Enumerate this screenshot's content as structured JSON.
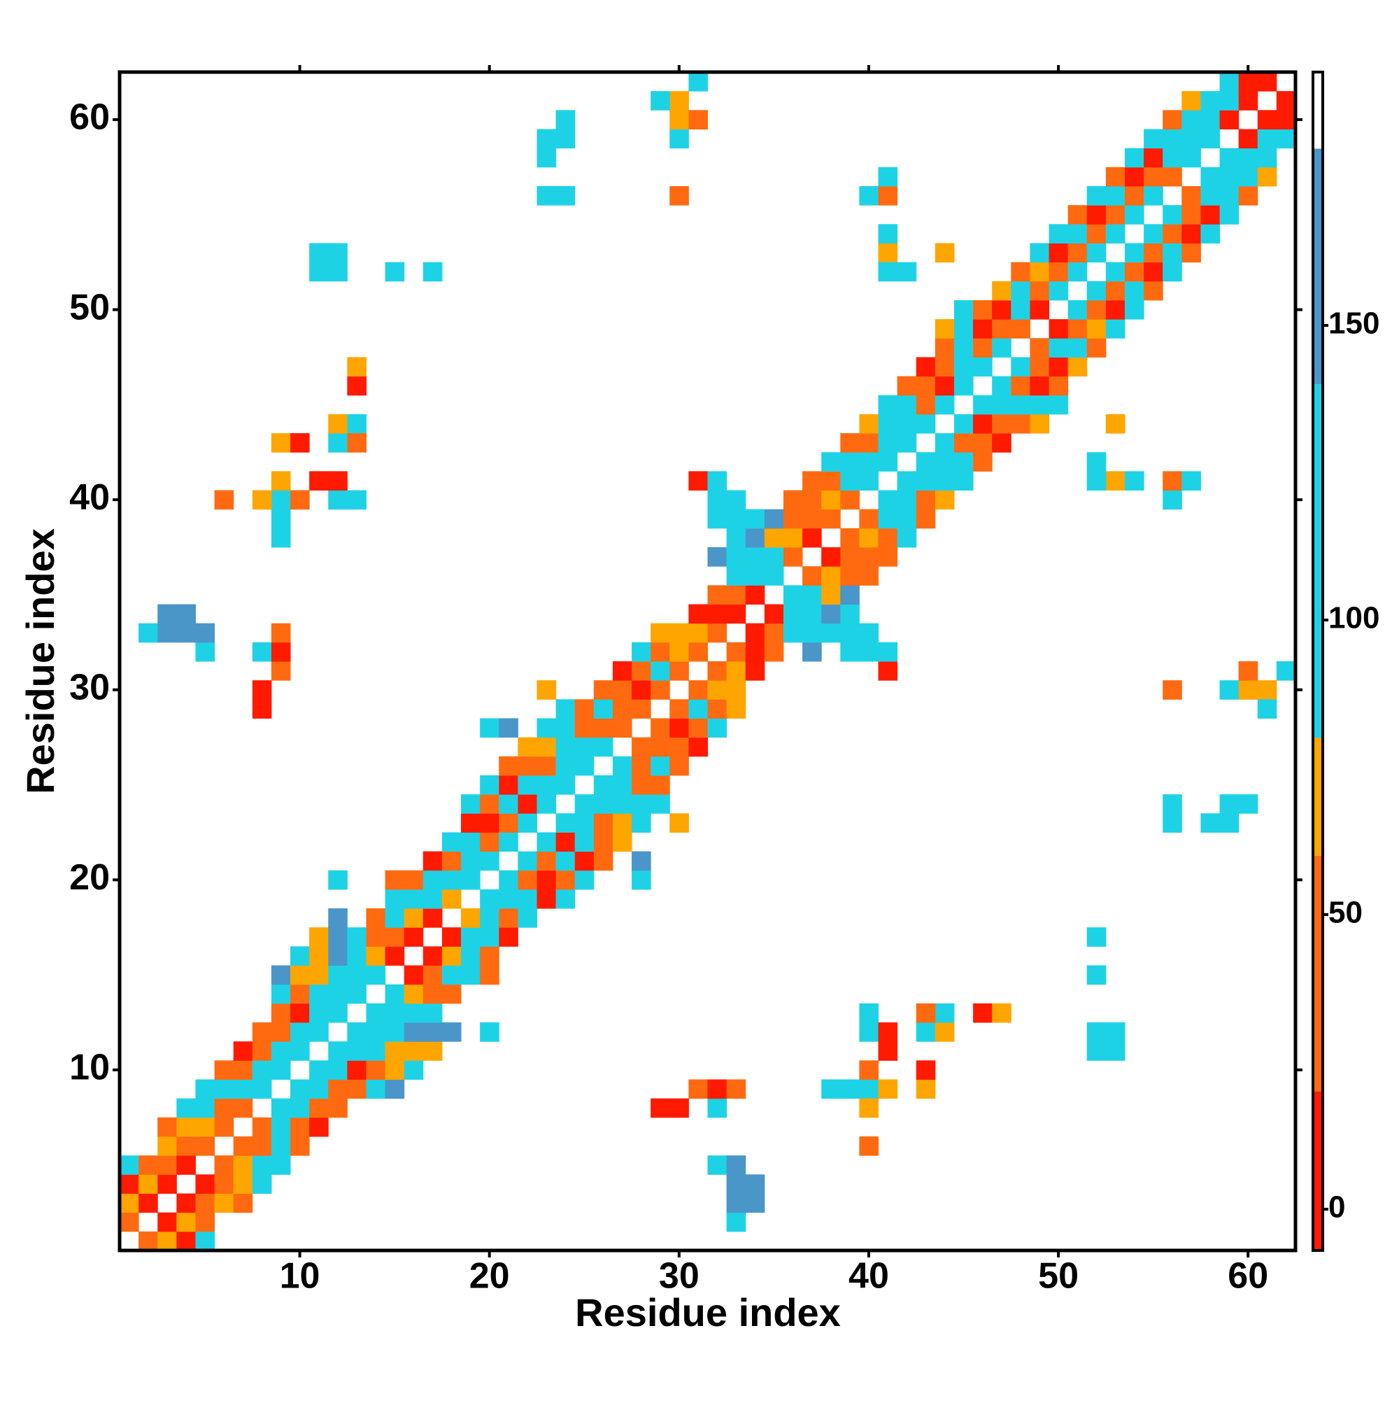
{
  "chart_data": {
    "type": "heatmap",
    "x_label": "Residue index",
    "y_label": "Residue index",
    "xlim": [
      0.5,
      62.5
    ],
    "ylim": [
      0.5,
      62.5
    ],
    "xticks": [
      10,
      20,
      30,
      40,
      50,
      60
    ],
    "yticks": [
      10,
      20,
      30,
      40,
      50,
      60
    ],
    "symmetric": true,
    "colorbar": {
      "range": [
        -7,
        193
      ],
      "ticks": [
        0,
        50,
        100,
        150
      ],
      "bands": [
        {
          "from": -7,
          "to": 20,
          "color": "#ff1a00"
        },
        {
          "from": 20,
          "to": 60,
          "color": "#ff6a10"
        },
        {
          "from": 60,
          "to": 80,
          "color": "#ffa500"
        },
        {
          "from": 80,
          "to": 140,
          "color": "#1ed2e6"
        },
        {
          "from": 140,
          "to": 180,
          "color": "#4a96c8"
        },
        {
          "from": 180,
          "to": 193,
          "color": "#ffffff"
        }
      ]
    },
    "cells": [
      [
        1,
        2,
        35
      ],
      [
        1,
        3,
        70
      ],
      [
        1,
        4,
        8
      ],
      [
        1,
        5,
        100
      ],
      [
        2,
        3,
        8
      ],
      [
        2,
        4,
        70
      ],
      [
        2,
        5,
        35
      ],
      [
        3,
        4,
        8
      ],
      [
        3,
        5,
        35
      ],
      [
        3,
        6,
        70
      ],
      [
        3,
        7,
        35
      ],
      [
        4,
        5,
        8
      ],
      [
        4,
        6,
        35
      ],
      [
        4,
        7,
        70
      ],
      [
        4,
        8,
        100
      ],
      [
        5,
        6,
        35
      ],
      [
        5,
        7,
        70
      ],
      [
        5,
        8,
        100
      ],
      [
        5,
        9,
        100
      ],
      [
        6,
        7,
        35
      ],
      [
        6,
        8,
        35
      ],
      [
        6,
        9,
        100
      ],
      [
        6,
        10,
        35
      ],
      [
        7,
        8,
        35
      ],
      [
        7,
        9,
        100
      ],
      [
        7,
        10,
        35
      ],
      [
        7,
        11,
        8
      ],
      [
        8,
        9,
        100
      ],
      [
        8,
        10,
        100
      ],
      [
        8,
        11,
        35
      ],
      [
        8,
        12,
        35
      ],
      [
        9,
        10,
        100
      ],
      [
        9,
        11,
        100
      ],
      [
        9,
        12,
        35
      ],
      [
        9,
        13,
        35
      ],
      [
        9,
        14,
        100
      ],
      [
        9,
        15,
        155
      ],
      [
        10,
        11,
        100
      ],
      [
        10,
        12,
        100
      ],
      [
        10,
        13,
        8
      ],
      [
        10,
        14,
        35
      ],
      [
        10,
        15,
        70
      ],
      [
        10,
        16,
        100
      ],
      [
        11,
        12,
        100
      ],
      [
        11,
        13,
        100
      ],
      [
        11,
        14,
        100
      ],
      [
        11,
        15,
        70
      ],
      [
        11,
        16,
        70
      ],
      [
        11,
        17,
        70
      ],
      [
        12,
        13,
        100
      ],
      [
        12,
        14,
        100
      ],
      [
        12,
        15,
        135
      ],
      [
        12,
        16,
        155
      ],
      [
        12,
        17,
        155
      ],
      [
        12,
        18,
        155
      ],
      [
        12,
        20,
        100
      ],
      [
        13,
        14,
        100
      ],
      [
        13,
        15,
        100
      ],
      [
        13,
        16,
        100
      ],
      [
        13,
        17,
        100
      ],
      [
        14,
        15,
        100
      ],
      [
        14,
        16,
        70
      ],
      [
        14,
        17,
        35
      ],
      [
        14,
        18,
        35
      ],
      [
        15,
        16,
        8
      ],
      [
        15,
        17,
        35
      ],
      [
        15,
        18,
        100
      ],
      [
        15,
        19,
        100
      ],
      [
        15,
        20,
        35
      ],
      [
        16,
        17,
        8
      ],
      [
        16,
        18,
        70
      ],
      [
        16,
        19,
        100
      ],
      [
        16,
        20,
        35
      ],
      [
        17,
        18,
        8
      ],
      [
        17,
        19,
        100
      ],
      [
        17,
        20,
        100
      ],
      [
        17,
        21,
        8
      ],
      [
        18,
        19,
        70
      ],
      [
        18,
        20,
        100
      ],
      [
        18,
        21,
        35
      ],
      [
        18,
        22,
        100
      ],
      [
        19,
        20,
        100
      ],
      [
        19,
        21,
        100
      ],
      [
        19,
        22,
        100
      ],
      [
        19,
        23,
        8
      ],
      [
        19,
        24,
        100
      ],
      [
        20,
        21,
        100
      ],
      [
        20,
        22,
        35
      ],
      [
        20,
        23,
        8
      ],
      [
        20,
        24,
        35
      ],
      [
        20,
        25,
        100
      ],
      [
        20,
        28,
        100
      ],
      [
        21,
        22,
        100
      ],
      [
        21,
        23,
        35
      ],
      [
        21,
        24,
        100
      ],
      [
        21,
        25,
        8
      ],
      [
        21,
        26,
        35
      ],
      [
        21,
        28,
        155
      ],
      [
        22,
        23,
        100
      ],
      [
        22,
        24,
        8
      ],
      [
        22,
        25,
        100
      ],
      [
        22,
        26,
        35
      ],
      [
        22,
        27,
        70
      ],
      [
        23,
        24,
        100
      ],
      [
        23,
        25,
        100
      ],
      [
        23,
        26,
        35
      ],
      [
        23,
        27,
        70
      ],
      [
        23,
        28,
        100
      ],
      [
        23,
        30,
        70
      ],
      [
        24,
        25,
        100
      ],
      [
        24,
        26,
        100
      ],
      [
        24,
        27,
        100
      ],
      [
        24,
        28,
        100
      ],
      [
        24,
        29,
        135
      ],
      [
        25,
        26,
        100
      ],
      [
        25,
        27,
        100
      ],
      [
        25,
        28,
        35
      ],
      [
        25,
        29,
        35
      ],
      [
        26,
        27,
        100
      ],
      [
        26,
        28,
        35
      ],
      [
        26,
        29,
        100
      ],
      [
        26,
        30,
        35
      ],
      [
        27,
        28,
        35
      ],
      [
        27,
        29,
        35
      ],
      [
        27,
        30,
        35
      ],
      [
        27,
        31,
        8
      ],
      [
        28,
        29,
        35
      ],
      [
        28,
        30,
        8
      ],
      [
        28,
        31,
        35
      ],
      [
        28,
        32,
        100
      ],
      [
        29,
        30,
        35
      ],
      [
        29,
        31,
        100
      ],
      [
        29,
        32,
        35
      ],
      [
        29,
        33,
        70
      ],
      [
        30,
        31,
        35
      ],
      [
        30,
        32,
        70
      ],
      [
        30,
        33,
        70
      ],
      [
        31,
        32,
        35
      ],
      [
        31,
        33,
        70
      ],
      [
        31,
        34,
        8
      ],
      [
        31,
        41,
        8
      ],
      [
        32,
        33,
        35
      ],
      [
        32,
        34,
        8
      ],
      [
        32,
        35,
        35
      ],
      [
        32,
        37,
        155
      ],
      [
        32,
        39,
        135
      ],
      [
        32,
        40,
        100
      ],
      [
        32,
        41,
        100
      ],
      [
        33,
        34,
        8
      ],
      [
        33,
        35,
        35
      ],
      [
        33,
        36,
        100
      ],
      [
        33,
        37,
        135
      ],
      [
        33,
        38,
        135
      ],
      [
        33,
        39,
        135
      ],
      [
        33,
        40,
        100
      ],
      [
        34,
        35,
        8
      ],
      [
        34,
        36,
        100
      ],
      [
        34,
        37,
        135
      ],
      [
        34,
        38,
        155
      ],
      [
        34,
        39,
        135
      ],
      [
        35,
        36,
        100
      ],
      [
        35,
        37,
        100
      ],
      [
        35,
        38,
        70
      ],
      [
        35,
        39,
        155
      ],
      [
        36,
        37,
        35
      ],
      [
        36,
        38,
        70
      ],
      [
        36,
        39,
        35
      ],
      [
        36,
        40,
        35
      ],
      [
        37,
        38,
        8
      ],
      [
        37,
        39,
        35
      ],
      [
        37,
        40,
        35
      ],
      [
        37,
        41,
        35
      ],
      [
        38,
        39,
        35
      ],
      [
        38,
        40,
        70
      ],
      [
        38,
        41,
        35
      ],
      [
        38,
        42,
        100
      ],
      [
        39,
        40,
        35
      ],
      [
        39,
        41,
        100
      ],
      [
        39,
        42,
        100
      ],
      [
        39,
        43,
        35
      ],
      [
        40,
        41,
        100
      ],
      [
        40,
        42,
        100
      ],
      [
        40,
        43,
        35
      ],
      [
        40,
        44,
        70
      ],
      [
        41,
        42,
        100
      ],
      [
        41,
        43,
        100
      ],
      [
        41,
        44,
        100
      ],
      [
        41,
        45,
        100
      ],
      [
        42,
        43,
        100
      ],
      [
        42,
        44,
        100
      ],
      [
        42,
        45,
        100
      ],
      [
        42,
        46,
        35
      ],
      [
        43,
        44,
        100
      ],
      [
        43,
        45,
        35
      ],
      [
        43,
        46,
        35
      ],
      [
        43,
        47,
        8
      ],
      [
        44,
        45,
        100
      ],
      [
        44,
        46,
        8
      ],
      [
        44,
        47,
        35
      ],
      [
        44,
        48,
        35
      ],
      [
        44,
        49,
        70
      ],
      [
        45,
        46,
        100
      ],
      [
        45,
        47,
        100
      ],
      [
        45,
        48,
        135
      ],
      [
        45,
        49,
        135
      ],
      [
        45,
        50,
        100
      ],
      [
        46,
        47,
        100
      ],
      [
        46,
        48,
        35
      ],
      [
        46,
        49,
        8
      ],
      [
        46,
        50,
        35
      ],
      [
        47,
        48,
        100
      ],
      [
        47,
        49,
        35
      ],
      [
        47,
        50,
        8
      ],
      [
        47,
        51,
        70
      ],
      [
        48,
        49,
        35
      ],
      [
        48,
        50,
        100
      ],
      [
        48,
        51,
        100
      ],
      [
        48,
        52,
        35
      ],
      [
        49,
        50,
        8
      ],
      [
        49,
        51,
        35
      ],
      [
        49,
        52,
        70
      ],
      [
        49,
        53,
        100
      ],
      [
        50,
        51,
        100
      ],
      [
        50,
        52,
        35
      ],
      [
        50,
        53,
        8
      ],
      [
        50,
        54,
        100
      ],
      [
        51,
        52,
        100
      ],
      [
        51,
        53,
        35
      ],
      [
        51,
        54,
        100
      ],
      [
        51,
        55,
        35
      ],
      [
        52,
        53,
        100
      ],
      [
        52,
        54,
        35
      ],
      [
        52,
        55,
        8
      ],
      [
        52,
        56,
        100
      ],
      [
        53,
        54,
        100
      ],
      [
        53,
        55,
        35
      ],
      [
        53,
        56,
        100
      ],
      [
        53,
        57,
        35
      ],
      [
        54,
        55,
        100
      ],
      [
        54,
        56,
        35
      ],
      [
        54,
        57,
        8
      ],
      [
        54,
        58,
        100
      ],
      [
        55,
        56,
        100
      ],
      [
        55,
        57,
        35
      ],
      [
        55,
        58,
        8
      ],
      [
        55,
        59,
        100
      ],
      [
        56,
        57,
        35
      ],
      [
        56,
        58,
        100
      ],
      [
        56,
        59,
        135
      ],
      [
        56,
        60,
        35
      ],
      [
        57,
        58,
        100
      ],
      [
        57,
        59,
        100
      ],
      [
        57,
        60,
        100
      ],
      [
        57,
        61,
        70
      ],
      [
        58,
        59,
        100
      ],
      [
        58,
        60,
        100
      ],
      [
        58,
        61,
        135
      ],
      [
        59,
        60,
        8
      ],
      [
        59,
        61,
        135
      ],
      [
        59,
        62,
        100
      ],
      [
        60,
        61,
        8
      ],
      [
        60,
        62,
        8
      ],
      [
        61,
        62,
        8
      ],
      [
        2,
        33,
        100
      ],
      [
        3,
        33,
        155
      ],
      [
        3,
        34,
        155
      ],
      [
        4,
        33,
        155
      ],
      [
        4,
        34,
        155
      ],
      [
        5,
        32,
        135
      ],
      [
        5,
        33,
        155
      ],
      [
        8,
        29,
        8
      ],
      [
        8,
        30,
        8
      ],
      [
        8,
        32,
        100
      ],
      [
        9,
        31,
        35
      ],
      [
        9,
        32,
        8
      ],
      [
        9,
        33,
        35
      ],
      [
        9,
        38,
        100
      ],
      [
        9,
        39,
        100
      ],
      [
        9,
        40,
        100
      ],
      [
        8,
        40,
        70
      ],
      [
        10,
        40,
        35
      ],
      [
        6,
        40,
        35
      ],
      [
        12,
        40,
        100
      ],
      [
        13,
        40,
        100
      ],
      [
        12,
        41,
        8
      ],
      [
        9,
        41,
        70
      ],
      [
        11,
        41,
        8
      ],
      [
        9,
        43,
        70
      ],
      [
        10,
        43,
        8
      ],
      [
        12,
        43,
        100
      ],
      [
        12,
        44,
        70
      ],
      [
        13,
        44,
        100
      ],
      [
        13,
        43,
        35
      ],
      [
        13,
        46,
        8
      ],
      [
        13,
        47,
        70
      ],
      [
        12,
        52,
        100
      ],
      [
        12,
        53,
        100
      ],
      [
        15,
        52,
        100
      ],
      [
        17,
        52,
        100
      ],
      [
        11,
        52,
        100
      ],
      [
        11,
        53,
        100
      ],
      [
        24,
        56,
        100
      ],
      [
        24,
        59,
        100
      ],
      [
        24,
        60,
        100
      ],
      [
        23,
        56,
        100
      ],
      [
        23,
        58,
        100
      ],
      [
        23,
        59,
        100
      ],
      [
        30,
        56,
        35
      ],
      [
        30,
        59,
        100
      ],
      [
        30,
        60,
        70
      ],
      [
        30,
        61,
        70
      ],
      [
        29,
        61,
        100
      ],
      [
        31,
        60,
        35
      ],
      [
        31,
        62,
        100
      ],
      [
        40,
        56,
        100
      ],
      [
        41,
        56,
        35
      ],
      [
        41,
        57,
        100
      ],
      [
        41,
        53,
        70
      ],
      [
        41,
        52,
        100
      ],
      [
        41,
        54,
        100
      ],
      [
        42,
        52,
        135
      ],
      [
        44,
        53,
        70
      ]
    ]
  }
}
